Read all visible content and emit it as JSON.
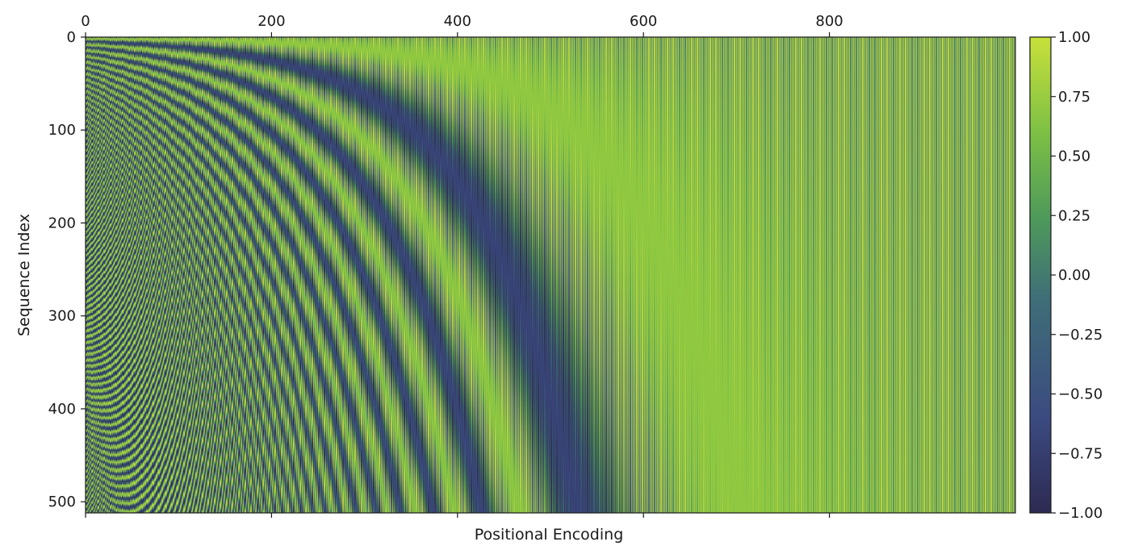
{
  "chart_data": {
    "type": "heatmap",
    "title": "",
    "xlabel": "Positional Encoding",
    "ylabel": "Sequence Index",
    "n_positions": 512,
    "d_model": 1000,
    "encoding": "sinusoidal",
    "x_axis_position": "top",
    "xlim": [
      0,
      1000
    ],
    "ylim": [
      512,
      0
    ],
    "x_ticks": [
      0,
      200,
      400,
      600,
      800
    ],
    "x_tick_labels": [
      "0",
      "200",
      "400",
      "600",
      "800"
    ],
    "y_ticks": [
      0,
      100,
      200,
      300,
      400,
      500
    ],
    "y_tick_labels": [
      "0",
      "100",
      "200",
      "300",
      "400",
      "500"
    ],
    "value_range": [
      -1.0,
      1.0
    ],
    "colormap": "viridis-like",
    "colormap_stops": [
      "#2d2a52",
      "#3b4b80",
      "#3f6e78",
      "#4e9a5a",
      "#7dc044",
      "#c8e03a"
    ],
    "colorbar": {
      "position": "right",
      "ticks": [
        1.0,
        0.75,
        0.5,
        0.25,
        0.0,
        -0.25,
        -0.5,
        -0.75,
        -1.0
      ],
      "tick_labels": [
        "1.00",
        "0.75",
        "0.50",
        "0.25",
        "0.00",
        "−0.25",
        "−0.50",
        "−0.75",
        "−1.00"
      ]
    },
    "grid": false
  }
}
